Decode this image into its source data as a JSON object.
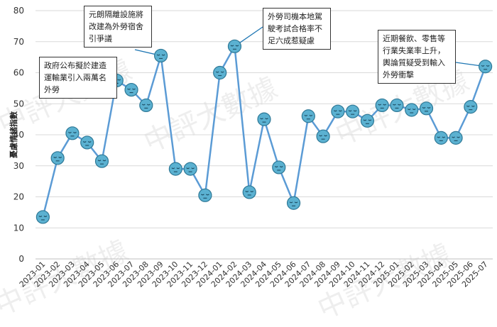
{
  "chart_data": {
    "type": "line",
    "ylabel": "憂慮情緒指數",
    "ylim": [
      0,
      80
    ],
    "yticks": [
      0,
      10,
      20,
      30,
      40,
      50,
      60,
      70,
      80
    ],
    "grid": true,
    "x": [
      "2023-01",
      "2023-02",
      "2023-03",
      "2023-04",
      "2023-05",
      "2023-06",
      "2023-07",
      "2023-08",
      "2023-09",
      "2023-10",
      "2023-11",
      "2023-12",
      "2024-01",
      "2024-02",
      "2024-03",
      "2024-04",
      "2024-05",
      "2024-06",
      "2024-07",
      "2024-08",
      "2024-09",
      "2024-10",
      "2024-11",
      "2024-12",
      "2025-01",
      "2025-02",
      "2025-03",
      "2025-04",
      "2025-05",
      "2025-06",
      "2025-07"
    ],
    "series": [
      {
        "values": [
          13.5,
          32.5,
          40.5,
          37.5,
          31.5,
          57.5,
          54.5,
          49.5,
          65.5,
          29,
          29,
          20.5,
          60,
          68.5,
          21.5,
          45,
          29.5,
          18,
          46,
          39.5,
          47.5,
          47.5,
          44.5,
          49.5,
          49.5,
          48,
          48.5,
          39,
          39,
          49,
          62
        ]
      }
    ],
    "annotations": [
      {
        "text": "政府公布擬於建造運輸業引入兩萬名外勞",
        "x": "2023-06"
      },
      {
        "text": "元朗隔離設施將改建為外勞宿舍引爭議",
        "x": "2023-09"
      },
      {
        "text": "外勞司機本地駕駛考試合格率不足六成惹疑慮",
        "x": "2024-02"
      },
      {
        "text": "近期餐飲、零售等行業失業率上升，輿論質疑受到輸入外勞衝擊",
        "x": "2025-07"
      }
    ]
  },
  "watermark": "中評大數據",
  "colors": {
    "line": "#5b9bd5",
    "marker_fill": "#5bb1d1",
    "marker_stroke": "#2e7896",
    "grid": "#d9d9d9"
  }
}
